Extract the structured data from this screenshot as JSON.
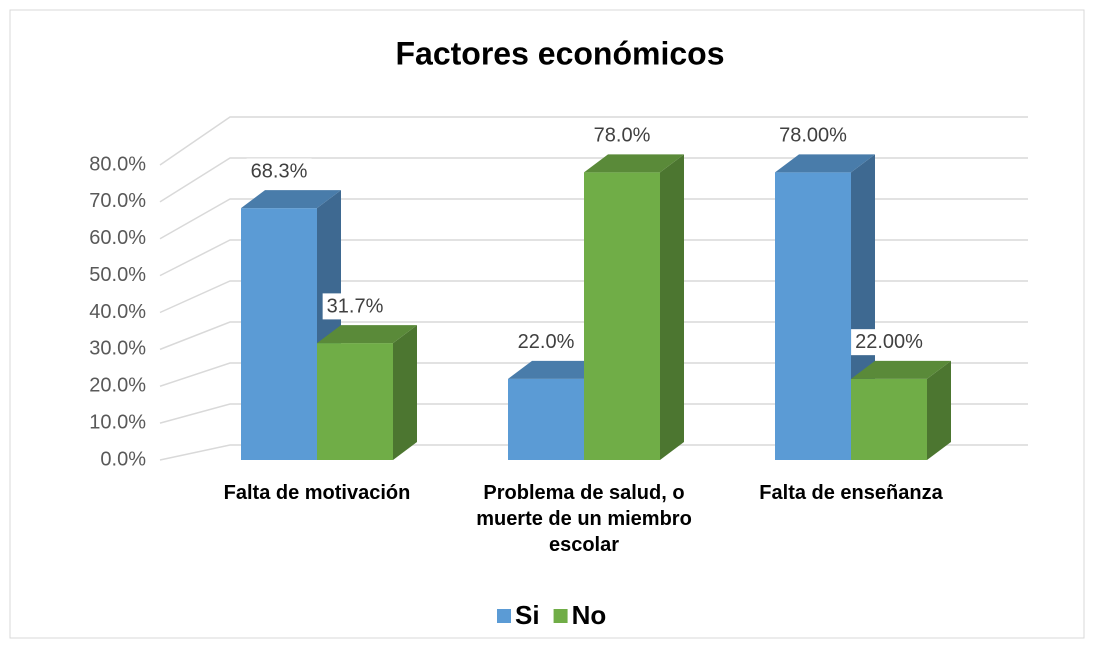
{
  "chart_data": {
    "type": "bar3d",
    "title": "Factores económicos",
    "categories": [
      "Falta de motivación",
      "Problema de salud, o muerte de un miembro escolar",
      "Falta de enseñanza"
    ],
    "series": [
      {
        "name": "Si",
        "color": "#5b9bd5",
        "values": [
          68.3,
          22.0,
          78.0
        ],
        "value_labels": [
          "68.3%",
          "22.0%",
          "78.00%"
        ]
      },
      {
        "name": "No",
        "color": "#70ad47",
        "values": [
          31.7,
          78.0,
          22.0
        ],
        "value_labels": [
          "31.7%",
          "78.0%",
          "22.00%"
        ]
      }
    ],
    "ylim": [
      0,
      80
    ],
    "yticks": [
      {
        "value": 0,
        "label": "0.0%"
      },
      {
        "value": 10,
        "label": "10.0%"
      },
      {
        "value": 20,
        "label": "20.0%"
      },
      {
        "value": 30,
        "label": "30.0%"
      },
      {
        "value": 40,
        "label": "40.0%"
      },
      {
        "value": 50,
        "label": "50.0%"
      },
      {
        "value": 60,
        "label": "60.0%"
      },
      {
        "value": 70,
        "label": "70.0%"
      },
      {
        "value": 80,
        "label": "80.0%"
      }
    ],
    "grid": true,
    "legend": "bottom"
  }
}
